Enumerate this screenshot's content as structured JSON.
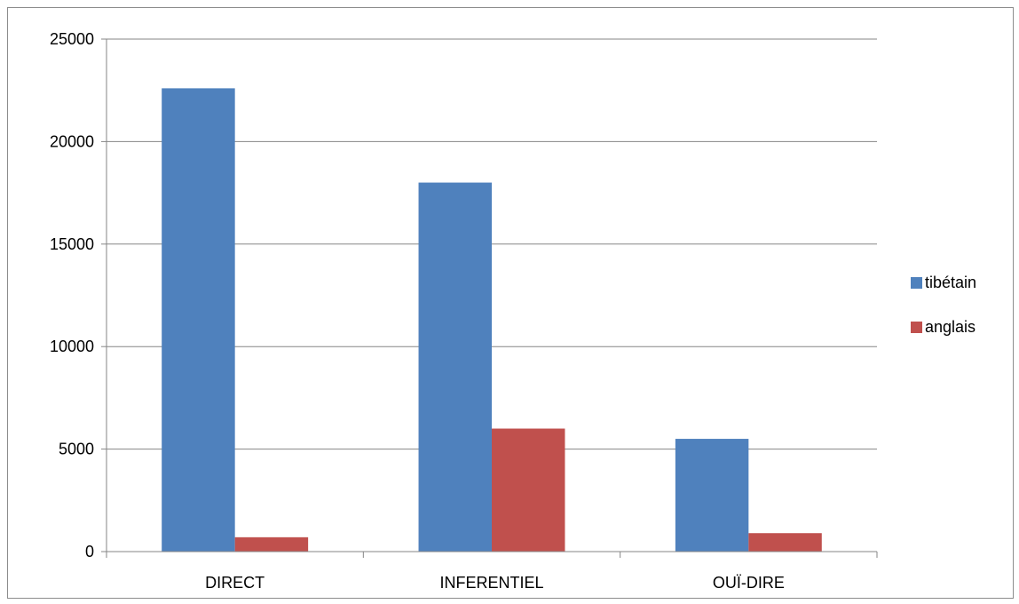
{
  "chart_data": {
    "type": "bar",
    "categories": [
      "DIRECT",
      "INFERENTIEL",
      "OUÏ-DIRE"
    ],
    "series": [
      {
        "name": "tibétain",
        "color": "#4f81bd",
        "values": [
          22600,
          18000,
          5500
        ]
      },
      {
        "name": "anglais",
        "color": "#c0504d",
        "values": [
          700,
          6000,
          900
        ]
      }
    ],
    "ylim": [
      0,
      25000
    ],
    "yticks": [
      0,
      5000,
      10000,
      15000,
      20000,
      25000
    ],
    "grid": true,
    "legend": "right"
  }
}
